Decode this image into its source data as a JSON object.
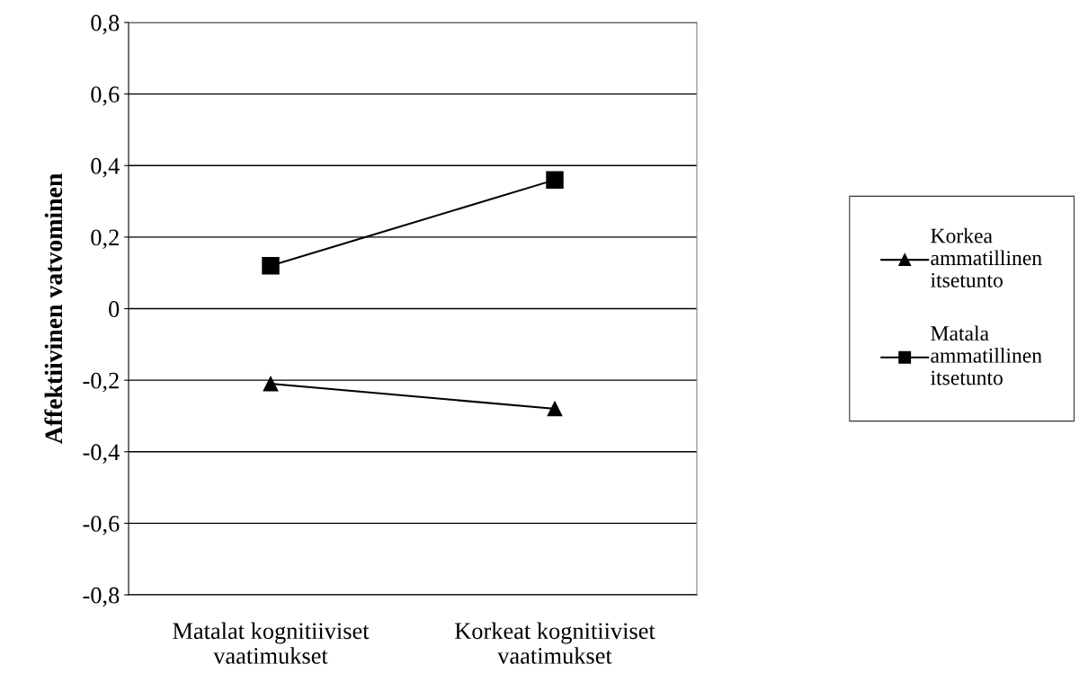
{
  "chart_data": {
    "type": "line",
    "ylabel": "Affektiivinen vatvominen",
    "categories": [
      "Matalat kognitiiviset\nvaatimukset",
      "Korkeat kognitiiviset\nvaatimukset"
    ],
    "series": [
      {
        "name": "Korkea\nammatillinen\nitsetunto",
        "color": "#000000",
        "marker": "triangle",
        "values": [
          -0.21,
          -0.28
        ]
      },
      {
        "name": "Matala\nammatillinen\nitsetunto",
        "color": "#000000",
        "marker": "square",
        "values": [
          0.12,
          0.36
        ]
      }
    ],
    "ylim": [
      -0.8,
      0.8
    ],
    "yticks": [
      {
        "value": -0.8,
        "label": "-0,8"
      },
      {
        "value": -0.6,
        "label": "-0,6"
      },
      {
        "value": -0.4,
        "label": "-0,4"
      },
      {
        "value": -0.2,
        "label": "-0,2"
      },
      0,
      {
        "value": 0.2,
        "label": "0,2"
      },
      {
        "value": 0.4,
        "label": "0,4"
      },
      {
        "value": 0.6,
        "label": "0,6"
      },
      {
        "value": 0.8,
        "label": "0,8"
      }
    ],
    "grid": "y",
    "legend": "right",
    "line_style": "solid"
  }
}
